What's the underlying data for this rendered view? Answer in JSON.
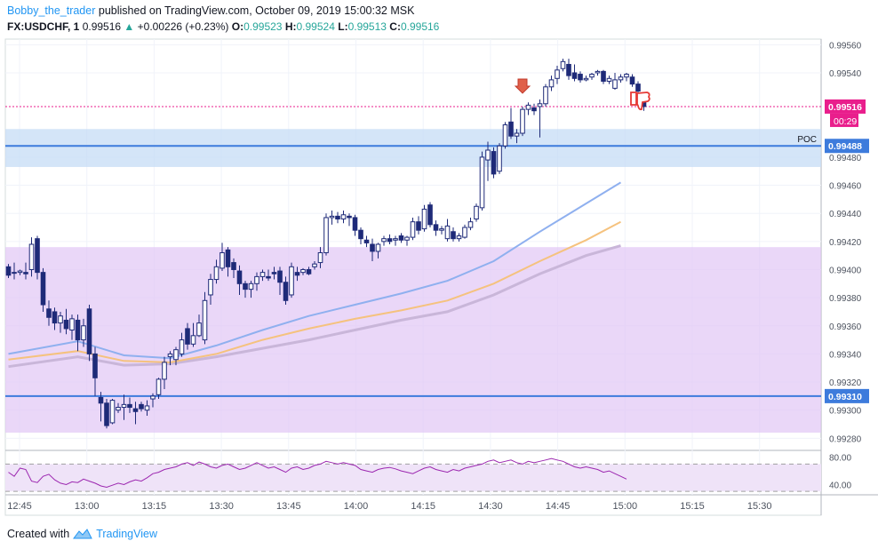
{
  "header": {
    "author": "Bobby_the_trader",
    "published": "published on TradingView.com, October 09, 2019 15:00:32 MSK",
    "symbol": "FX:USDCHF, 1",
    "last": "0.99516",
    "arrow": "▲",
    "change": "+0.00226 (+0.23%)",
    "o_label": "O:",
    "o": "0.99523",
    "h_label": "H:",
    "h": "0.99524",
    "l_label": "L:",
    "l": "0.99513",
    "c_label": "C:",
    "c": "0.99516"
  },
  "footer": {
    "created": "Created with",
    "brand": "TradingView"
  },
  "colors": {
    "up": "#ffffff",
    "down": "#1e2a78",
    "zone_purple": "#e1c6f5",
    "zone_blue": "#c6dcf5",
    "level_line": "#3d7bdc",
    "ma_fast": "#8fb0ef",
    "ma_mid": "#f5c27e",
    "ma_slow": "#c9b6d9",
    "rsi": "#9c27b0",
    "price_label": "#e91e8c",
    "accent": "#2196f3"
  },
  "chart_data": {
    "type": "candlestick",
    "price_axis": {
      "ticks": [
        "0.99560",
        "0.99540",
        "0.99480",
        "0.99460",
        "0.99440",
        "0.99420",
        "0.99400",
        "0.99380",
        "0.99360",
        "0.99340",
        "0.99320",
        "0.99300",
        "0.99280"
      ],
      "ylim": [
        0.99272,
        0.99564
      ]
    },
    "time_axis": {
      "ticks": [
        "12:45",
        "13:00",
        "13:15",
        "13:30",
        "13:45",
        "14:00",
        "14:15",
        "14:30",
        "14:45",
        "15:00",
        "15:15",
        "15:30"
      ]
    },
    "price_labels": {
      "last": "0.99516",
      "countdown": "00:29",
      "poc": "0.99488",
      "poc_name": "POC",
      "level": "0.99310"
    },
    "zones": [
      {
        "name": "purple-zone",
        "from": 0.99284,
        "to": 0.99416
      },
      {
        "name": "blue-zone",
        "from": 0.99473,
        "to": 0.995
      }
    ],
    "levels": [
      0.99488,
      0.9931
    ],
    "candles": [
      [
        0.99402,
        0.99404,
        0.99394,
        0.99396
      ],
      [
        0.99398,
        0.99405,
        0.99393,
        0.99398
      ],
      [
        0.99398,
        0.994,
        0.99396,
        0.99399
      ],
      [
        0.99398,
        0.99405,
        0.99393,
        0.99397
      ],
      [
        0.994,
        0.99423,
        0.99395,
        0.99418
      ],
      [
        0.99422,
        0.99424,
        0.99393,
        0.99398
      ],
      [
        0.99398,
        0.99401,
        0.9937,
        0.99375
      ],
      [
        0.99372,
        0.99378,
        0.9936,
        0.99366
      ],
      [
        0.9937,
        0.99373,
        0.99357,
        0.99362
      ],
      [
        0.99362,
        0.9937,
        0.99355,
        0.99367
      ],
      [
        0.99364,
        0.99372,
        0.99354,
        0.99358
      ],
      [
        0.99357,
        0.99368,
        0.9935,
        0.99365
      ],
      [
        0.99364,
        0.99368,
        0.99342,
        0.9935
      ],
      [
        0.9935,
        0.99365,
        0.99345,
        0.9936
      ],
      [
        0.99372,
        0.99375,
        0.99335,
        0.9934
      ],
      [
        0.9934,
        0.99345,
        0.9931,
        0.99323
      ],
      [
        0.99309,
        0.99313,
        0.99292,
        0.99305
      ],
      [
        0.99305,
        0.99308,
        0.99287,
        0.99289
      ],
      [
        0.99291,
        0.99308,
        0.9929,
        0.99307
      ],
      [
        0.993,
        0.99305,
        0.99298,
        0.99302
      ],
      [
        0.99302,
        0.99311,
        0.99293,
        0.99304
      ],
      [
        0.99304,
        0.99309,
        0.99298,
        0.99302
      ],
      [
        0.99301,
        0.99306,
        0.9929,
        0.99299
      ],
      [
        0.99304,
        0.99306,
        0.99299,
        0.99301
      ],
      [
        0.993,
        0.99307,
        0.99296,
        0.99303
      ],
      [
        0.99308,
        0.99312,
        0.99302,
        0.9931
      ],
      [
        0.99311,
        0.99323,
        0.99308,
        0.99322
      ],
      [
        0.99322,
        0.99338,
        0.99315,
        0.99334
      ],
      [
        0.99338,
        0.99342,
        0.99332,
        0.9934
      ],
      [
        0.99336,
        0.99345,
        0.99332,
        0.99343
      ],
      [
        0.9934,
        0.99355,
        0.99338,
        0.9935
      ],
      [
        0.99358,
        0.99362,
        0.99343,
        0.99347
      ],
      [
        0.99347,
        0.99362,
        0.99345,
        0.99353
      ],
      [
        0.99353,
        0.99368,
        0.99352,
        0.99362
      ],
      [
        0.9935,
        0.99384,
        0.99347,
        0.99378
      ],
      [
        0.99382,
        0.99397,
        0.99375,
        0.99393
      ],
      [
        0.99393,
        0.99407,
        0.9939,
        0.99402
      ],
      [
        0.99401,
        0.99419,
        0.99399,
        0.99412
      ],
      [
        0.99414,
        0.99416,
        0.99395,
        0.99402
      ],
      [
        0.99405,
        0.99408,
        0.99394,
        0.994
      ],
      [
        0.99399,
        0.99403,
        0.99382,
        0.9939
      ],
      [
        0.9939,
        0.99392,
        0.9938,
        0.99386
      ],
      [
        0.99386,
        0.99392,
        0.9938,
        0.9939
      ],
      [
        0.9939,
        0.99398,
        0.99385,
        0.99395
      ],
      [
        0.99395,
        0.994,
        0.99392,
        0.99398
      ],
      [
        0.99395,
        0.994,
        0.99392,
        0.99394
      ],
      [
        0.99398,
        0.99402,
        0.99393,
        0.99397
      ],
      [
        0.99399,
        0.99402,
        0.99382,
        0.99391
      ],
      [
        0.99391,
        0.99395,
        0.99375,
        0.99378
      ],
      [
        0.99382,
        0.99405,
        0.9938,
        0.99402
      ],
      [
        0.99398,
        0.99402,
        0.99392,
        0.99396
      ],
      [
        0.99398,
        0.99401,
        0.99396,
        0.994
      ],
      [
        0.994,
        0.99402,
        0.99396,
        0.99397
      ],
      [
        0.99402,
        0.99406,
        0.994,
        0.99404
      ],
      [
        0.99405,
        0.99416,
        0.99401,
        0.99412
      ],
      [
        0.99412,
        0.9944,
        0.9941,
        0.99437
      ],
      [
        0.99437,
        0.99442,
        0.99432,
        0.99438
      ],
      [
        0.99438,
        0.99441,
        0.99433,
        0.99436
      ],
      [
        0.99436,
        0.99442,
        0.99433,
        0.99439
      ],
      [
        0.99438,
        0.9944,
        0.99431,
        0.99437
      ],
      [
        0.99437,
        0.99439,
        0.99424,
        0.99428
      ],
      [
        0.99428,
        0.9943,
        0.99418,
        0.99422
      ],
      [
        0.99421,
        0.99424,
        0.99416,
        0.99419
      ],
      [
        0.99418,
        0.99422,
        0.99406,
        0.99413
      ],
      [
        0.99413,
        0.99419,
        0.99408,
        0.99418
      ],
      [
        0.9942,
        0.99424,
        0.99417,
        0.99422
      ],
      [
        0.99422,
        0.99425,
        0.99418,
        0.9942
      ],
      [
        0.99421,
        0.99424,
        0.99417,
        0.99422
      ],
      [
        0.99424,
        0.99426,
        0.99419,
        0.99421
      ],
      [
        0.99421,
        0.99424,
        0.99417,
        0.99423
      ],
      [
        0.99423,
        0.99437,
        0.99421,
        0.99434
      ],
      [
        0.99434,
        0.99438,
        0.99425,
        0.99428
      ],
      [
        0.99429,
        0.99446,
        0.99427,
        0.99443
      ],
      [
        0.99446,
        0.99448,
        0.9943,
        0.99432
      ],
      [
        0.99432,
        0.99435,
        0.99424,
        0.99428
      ],
      [
        0.99428,
        0.99431,
        0.99425,
        0.99429
      ],
      [
        0.99422,
        0.99436,
        0.9942,
        0.99431
      ],
      [
        0.99427,
        0.9943,
        0.9942,
        0.99422
      ],
      [
        0.99422,
        0.99426,
        0.9942,
        0.99424
      ],
      [
        0.99423,
        0.99432,
        0.99422,
        0.9943
      ],
      [
        0.9943,
        0.99437,
        0.99428,
        0.99434
      ],
      [
        0.99436,
        0.99447,
        0.99434,
        0.99445
      ],
      [
        0.99444,
        0.99484,
        0.99442,
        0.9948
      ],
      [
        0.99478,
        0.99491,
        0.99463,
        0.99485
      ],
      [
        0.99484,
        0.99487,
        0.99465,
        0.99468
      ],
      [
        0.9947,
        0.9949,
        0.99468,
        0.99488
      ],
      [
        0.99488,
        0.99505,
        0.99486,
        0.99503
      ],
      [
        0.99505,
        0.99515,
        0.99493,
        0.99495
      ],
      [
        0.99495,
        0.995,
        0.9949,
        0.99497
      ],
      [
        0.99497,
        0.99516,
        0.99495,
        0.99514
      ],
      [
        0.99514,
        0.99519,
        0.9951,
        0.99517
      ],
      [
        0.99515,
        0.99518,
        0.9951,
        0.99513
      ],
      [
        0.99516,
        0.99521,
        0.99494,
        0.99518
      ],
      [
        0.99518,
        0.99532,
        0.99516,
        0.9953
      ],
      [
        0.9953,
        0.99538,
        0.99527,
        0.99535
      ],
      [
        0.99536,
        0.99545,
        0.99532,
        0.99542
      ],
      [
        0.99543,
        0.9955,
        0.99541,
        0.99548
      ],
      [
        0.99546,
        0.9955,
        0.99535,
        0.99538
      ],
      [
        0.9954,
        0.99546,
        0.99534,
        0.99536
      ],
      [
        0.99539,
        0.99541,
        0.99533,
        0.99535
      ],
      [
        0.99535,
        0.99538,
        0.99534,
        0.99536
      ],
      [
        0.99537,
        0.9954,
        0.99535,
        0.99539
      ],
      [
        0.9954,
        0.99542,
        0.99538,
        0.99541
      ],
      [
        0.99541,
        0.99542,
        0.99532,
        0.99534
      ],
      [
        0.99534,
        0.99538,
        0.99532,
        0.99536
      ],
      [
        0.99529,
        0.9954,
        0.99528,
        0.99535
      ],
      [
        0.99535,
        0.99539,
        0.99533,
        0.99537
      ],
      [
        0.99537,
        0.9954,
        0.99534,
        0.99539
      ],
      [
        0.99537,
        0.99539,
        0.9953,
        0.99532
      ],
      [
        0.99532,
        0.99534,
        0.99525,
        0.99527
      ],
      [
        0.99523,
        0.99524,
        0.99513,
        0.99516
      ]
    ],
    "ma": {
      "fast": [
        [
          0,
          0.9934
        ],
        [
          12,
          0.99349
        ],
        [
          20,
          0.99339
        ],
        [
          28,
          0.99337
        ],
        [
          36,
          0.99346
        ],
        [
          44,
          0.99357
        ],
        [
          52,
          0.99367
        ],
        [
          60,
          0.99375
        ],
        [
          68,
          0.99383
        ],
        [
          76,
          0.99392
        ],
        [
          84,
          0.99406
        ],
        [
          92,
          0.99427
        ],
        [
          100,
          0.99447
        ],
        [
          106,
          0.99462
        ]
      ],
      "mid": [
        [
          0,
          0.99336
        ],
        [
          12,
          0.99342
        ],
        [
          20,
          0.99335
        ],
        [
          28,
          0.99334
        ],
        [
          36,
          0.9934
        ],
        [
          44,
          0.9935
        ],
        [
          52,
          0.99358
        ],
        [
          60,
          0.99365
        ],
        [
          68,
          0.99371
        ],
        [
          76,
          0.99378
        ],
        [
          84,
          0.9939
        ],
        [
          92,
          0.99406
        ],
        [
          100,
          0.99421
        ],
        [
          106,
          0.99434
        ]
      ],
      "slow": [
        [
          0,
          0.99331
        ],
        [
          12,
          0.99338
        ],
        [
          20,
          0.99332
        ],
        [
          28,
          0.99333
        ],
        [
          36,
          0.99338
        ],
        [
          44,
          0.99344
        ],
        [
          52,
          0.9935
        ],
        [
          60,
          0.99357
        ],
        [
          68,
          0.99364
        ],
        [
          76,
          0.9937
        ],
        [
          84,
          0.99382
        ],
        [
          92,
          0.99397
        ],
        [
          100,
          0.9941
        ],
        [
          106,
          0.99417
        ]
      ]
    },
    "rsi": {
      "ticks": [
        "80.00",
        "40.00"
      ],
      "ylim": [
        25,
        90
      ],
      "bands": [
        70,
        30
      ],
      "values": [
        58,
        52,
        64,
        62,
        45,
        43,
        52,
        55,
        47,
        42,
        40,
        44,
        43,
        48,
        45,
        42,
        38,
        36,
        39,
        42,
        40,
        44,
        47,
        45,
        50,
        56,
        58,
        62,
        64,
        66,
        70,
        72,
        68,
        73,
        70,
        66,
        64,
        68,
        70,
        66,
        62,
        64,
        68,
        72,
        68,
        64,
        66,
        62,
        58,
        64,
        66,
        62,
        64,
        68,
        70,
        74,
        72,
        70,
        72,
        70,
        68,
        62,
        60,
        58,
        62,
        64,
        65,
        63,
        60,
        58,
        56,
        60,
        64,
        66,
        62,
        60,
        58,
        62,
        60,
        64,
        66,
        68,
        70,
        74,
        76,
        72,
        74,
        76,
        72,
        70,
        74,
        72,
        74,
        76,
        78,
        76,
        74,
        70,
        66,
        64,
        66,
        64,
        62,
        58,
        60,
        56,
        52,
        48
      ]
    },
    "annotations": [
      "down-arrow-marker",
      "thumbs-down-marker"
    ]
  }
}
